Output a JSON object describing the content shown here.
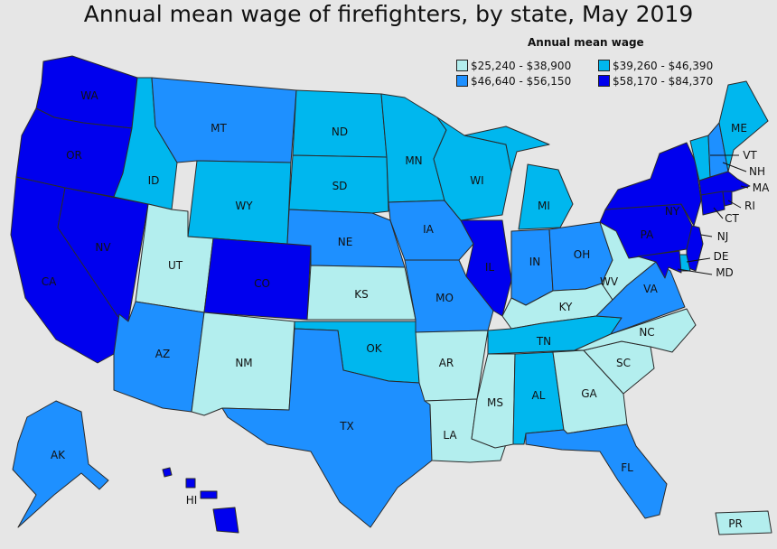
{
  "title": "Annual mean wage of firefighters, by state, May 2019",
  "legend": {
    "title": "Annual mean wage",
    "bins": [
      {
        "label": "$25,240 - $38,900",
        "color": "#b3eeee"
      },
      {
        "label": "$39,260 - $46,390",
        "color": "#00b7ee"
      },
      {
        "label": "$46,640 - $56,150",
        "color": "#1e90ff"
      },
      {
        "label": "$58,170 - $84,370",
        "color": "#0000ee"
      }
    ]
  },
  "states": [
    {
      "code": "WA",
      "bin": 3
    },
    {
      "code": "OR",
      "bin": 3
    },
    {
      "code": "CA",
      "bin": 3
    },
    {
      "code": "NV",
      "bin": 3
    },
    {
      "code": "ID",
      "bin": 1
    },
    {
      "code": "MT",
      "bin": 2
    },
    {
      "code": "WY",
      "bin": 1
    },
    {
      "code": "UT",
      "bin": 0
    },
    {
      "code": "CO",
      "bin": 3
    },
    {
      "code": "AZ",
      "bin": 2
    },
    {
      "code": "NM",
      "bin": 0
    },
    {
      "code": "ND",
      "bin": 1
    },
    {
      "code": "SD",
      "bin": 1
    },
    {
      "code": "NE",
      "bin": 2
    },
    {
      "code": "KS",
      "bin": 0
    },
    {
      "code": "OK",
      "bin": 1
    },
    {
      "code": "TX",
      "bin": 2
    },
    {
      "code": "MN",
      "bin": 1
    },
    {
      "code": "IA",
      "bin": 2
    },
    {
      "code": "MO",
      "bin": 2
    },
    {
      "code": "AR",
      "bin": 0
    },
    {
      "code": "LA",
      "bin": 0
    },
    {
      "code": "WI",
      "bin": 1
    },
    {
      "code": "IL",
      "bin": 3
    },
    {
      "code": "MI",
      "bin": 1
    },
    {
      "code": "IN",
      "bin": 2
    },
    {
      "code": "OH",
      "bin": 2
    },
    {
      "code": "KY",
      "bin": 0
    },
    {
      "code": "TN",
      "bin": 1
    },
    {
      "code": "MS",
      "bin": 0
    },
    {
      "code": "AL",
      "bin": 1
    },
    {
      "code": "GA",
      "bin": 0
    },
    {
      "code": "FL",
      "bin": 2
    },
    {
      "code": "SC",
      "bin": 0
    },
    {
      "code": "NC",
      "bin": 0
    },
    {
      "code": "VA",
      "bin": 2
    },
    {
      "code": "WV",
      "bin": 0
    },
    {
      "code": "PA",
      "bin": 3
    },
    {
      "code": "NY",
      "bin": 3
    },
    {
      "code": "ME",
      "bin": 1
    },
    {
      "code": "VT",
      "bin": 1
    },
    {
      "code": "NH",
      "bin": 2
    },
    {
      "code": "MA",
      "bin": 3
    },
    {
      "code": "RI",
      "bin": 3
    },
    {
      "code": "CT",
      "bin": 3
    },
    {
      "code": "NJ",
      "bin": 3
    },
    {
      "code": "DE",
      "bin": 1
    },
    {
      "code": "MD",
      "bin": 3
    },
    {
      "code": "AK",
      "bin": 2
    },
    {
      "code": "HI",
      "bin": 3
    },
    {
      "code": "PR",
      "bin": 0
    }
  ]
}
